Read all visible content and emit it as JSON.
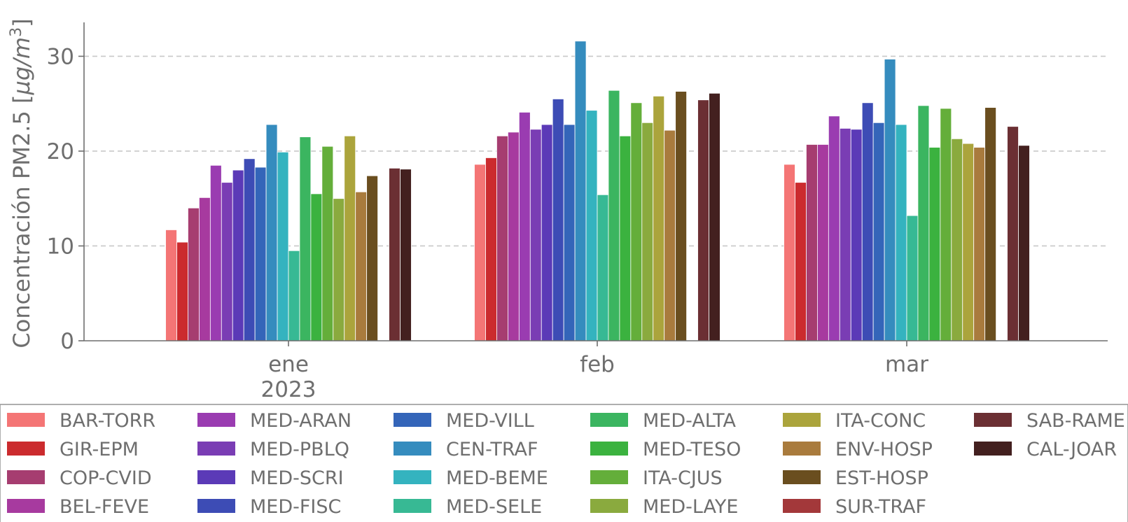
{
  "chart_data": {
    "type": "bar",
    "xlabel": "",
    "ylabel": "Concentración PM2.5 [",
    "ylabel_unit": "μg/m",
    "ylabel_unit_sup": "3",
    "ylabel_close": "]",
    "ylim": [
      0,
      33.5
    ],
    "yticks": [
      0,
      10,
      20,
      30
    ],
    "grid": "horizontal dashed",
    "legend_position": "bottom",
    "categories": [
      "ene",
      "feb",
      "mar"
    ],
    "year_label": "2023",
    "series": [
      {
        "name": "BAR-TORR",
        "color": "#f47575",
        "values": [
          11.7,
          18.6,
          18.6
        ]
      },
      {
        "name": "GIR-EPM",
        "color": "#cb2b2e",
        "values": [
          10.4,
          19.3,
          16.7
        ]
      },
      {
        "name": "COP-CVID",
        "color": "#a63d70",
        "values": [
          14.0,
          21.6,
          20.7
        ]
      },
      {
        "name": "BEL-FEVE",
        "color": "#a73a9f",
        "values": [
          15.1,
          22.0,
          20.7
        ]
      },
      {
        "name": "MED-ARAN",
        "color": "#9a3cb1",
        "values": [
          18.5,
          24.1,
          23.7
        ]
      },
      {
        "name": "MED-PBLQ",
        "color": "#7a3db4",
        "values": [
          16.7,
          22.3,
          22.4
        ]
      },
      {
        "name": "MED-SCRI",
        "color": "#5b3ab7",
        "values": [
          18.0,
          22.8,
          22.3
        ]
      },
      {
        "name": "MED-FISC",
        "color": "#3d4cb5",
        "values": [
          19.2,
          25.5,
          25.1
        ]
      },
      {
        "name": "MED-VILL",
        "color": "#3465b9",
        "values": [
          18.3,
          22.8,
          23.0
        ]
      },
      {
        "name": "CEN-TRAF",
        "color": "#358cbe",
        "values": [
          22.8,
          31.6,
          29.7
        ]
      },
      {
        "name": "MED-BEME",
        "color": "#34b3bf",
        "values": [
          19.9,
          24.3,
          22.8
        ]
      },
      {
        "name": "MED-SELE",
        "color": "#37b994",
        "values": [
          9.5,
          15.4,
          13.2
        ]
      },
      {
        "name": "MED-ALTA",
        "color": "#3bb560",
        "values": [
          21.5,
          26.4,
          24.8
        ]
      },
      {
        "name": "MED-TESO",
        "color": "#3bb23f",
        "values": [
          15.5,
          21.6,
          20.4
        ]
      },
      {
        "name": "ITA-CJUS",
        "color": "#64ae3a",
        "values": [
          20.5,
          25.1,
          24.5
        ]
      },
      {
        "name": "MED-LAYE",
        "color": "#8aaa3e",
        "values": [
          15.0,
          23.0,
          21.3
        ]
      },
      {
        "name": "ITA-CONC",
        "color": "#aba43c",
        "values": [
          21.6,
          25.8,
          20.8
        ]
      },
      {
        "name": "ENV-HOSP",
        "color": "#a97b3d",
        "values": [
          15.7,
          22.2,
          20.4
        ]
      },
      {
        "name": "EST-HOSP",
        "color": "#6a4e1f",
        "values": [
          17.4,
          26.3,
          24.6
        ]
      },
      {
        "name": "SUR-TRAF",
        "color": "#a3383a",
        "values": [
          null,
          null,
          null
        ]
      },
      {
        "name": "SAB-RAME",
        "color": "#6b2f33",
        "values": [
          18.2,
          25.4,
          22.6
        ]
      },
      {
        "name": "CAL-JOAR",
        "color": "#43201f",
        "values": [
          18.1,
          26.1,
          20.6
        ]
      }
    ]
  }
}
